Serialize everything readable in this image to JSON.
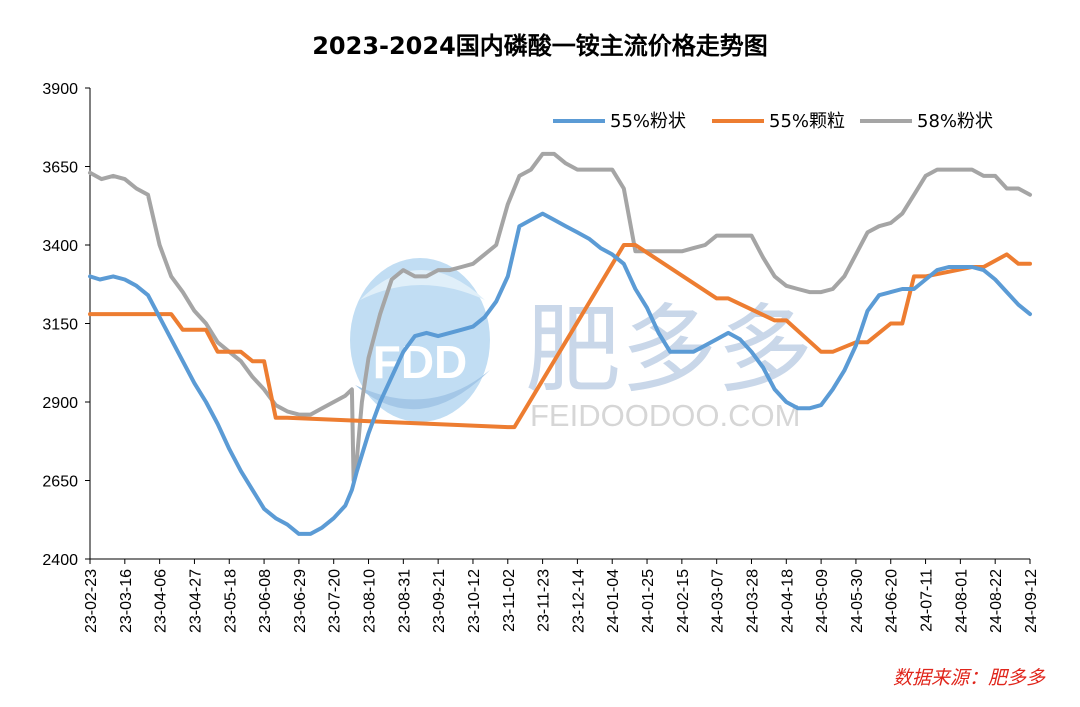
{
  "chart_data": {
    "type": "line",
    "title": "2023-2024国内磷酸一铵主流价格走势图",
    "xlabel": "",
    "ylabel": "",
    "ylim": [
      2400,
      3900
    ],
    "yticks": [
      2400,
      2650,
      2900,
      3150,
      3400,
      3650,
      3900
    ],
    "xlim": [
      "2023-02-23",
      "2024-09-12"
    ],
    "xticks": [
      "23-02-23",
      "23-03-16",
      "23-04-06",
      "23-04-27",
      "23-05-18",
      "23-06-08",
      "23-06-29",
      "23-07-20",
      "23-08-10",
      "23-08-31",
      "23-09-21",
      "23-10-12",
      "23-11-02",
      "23-11-23",
      "23-12-14",
      "24-01-04",
      "24-01-25",
      "24-02-15",
      "24-03-07",
      "24-03-28",
      "24-04-18",
      "24-05-09",
      "24-05-30",
      "24-06-20",
      "24-07-11",
      "24-08-01",
      "24-08-22",
      "24-09-12"
    ],
    "legend_position": "top-right",
    "grid": false,
    "series": [
      {
        "name": "55%粉状",
        "color": "#5b9bd5",
        "x": [
          "2023-02-23",
          "2023-03-01",
          "2023-03-09",
          "2023-03-16",
          "2023-03-23",
          "2023-03-30",
          "2023-04-06",
          "2023-04-13",
          "2023-04-20",
          "2023-04-27",
          "2023-05-04",
          "2023-05-11",
          "2023-05-18",
          "2023-05-25",
          "2023-06-01",
          "2023-06-08",
          "2023-06-15",
          "2023-06-22",
          "2023-06-29",
          "2023-07-06",
          "2023-07-13",
          "2023-07-20",
          "2023-07-27",
          "2023-07-31",
          "2023-08-03",
          "2023-08-10",
          "2023-08-17",
          "2023-08-24",
          "2023-08-31",
          "2023-09-07",
          "2023-09-14",
          "2023-09-21",
          "2023-09-28",
          "2023-10-05",
          "2023-10-12",
          "2023-10-19",
          "2023-10-26",
          "2023-11-02",
          "2023-11-09",
          "2023-11-16",
          "2023-11-23",
          "2023-11-30",
          "2023-12-07",
          "2023-12-14",
          "2023-12-21",
          "2023-12-28",
          "2024-01-04",
          "2024-01-11",
          "2024-01-18",
          "2024-01-25",
          "2024-02-01",
          "2024-02-08",
          "2024-02-15",
          "2024-02-22",
          "2024-02-29",
          "2024-03-07",
          "2024-03-14",
          "2024-03-21",
          "2024-03-28",
          "2024-04-04",
          "2024-04-11",
          "2024-04-18",
          "2024-04-25",
          "2024-05-02",
          "2024-05-09",
          "2024-05-16",
          "2024-05-23",
          "2024-05-30",
          "2024-06-06",
          "2024-06-13",
          "2024-06-20",
          "2024-06-27",
          "2024-07-04",
          "2024-07-11",
          "2024-07-18",
          "2024-07-25",
          "2024-08-01",
          "2024-08-08",
          "2024-08-15",
          "2024-08-22",
          "2024-08-29",
          "2024-09-05",
          "2024-09-12"
        ],
        "y": [
          3300,
          3290,
          3300,
          3290,
          3270,
          3240,
          3170,
          3100,
          3030,
          2960,
          2900,
          2830,
          2750,
          2680,
          2620,
          2560,
          2530,
          2510,
          2480,
          2480,
          2500,
          2530,
          2570,
          2620,
          2680,
          2800,
          2900,
          2980,
          3060,
          3110,
          3120,
          3110,
          3120,
          3130,
          3140,
          3170,
          3220,
          3300,
          3460,
          3480,
          3500,
          3480,
          3460,
          3440,
          3420,
          3390,
          3370,
          3340,
          3260,
          3200,
          3120,
          3060,
          3060,
          3060,
          3080,
          3100,
          3120,
          3100,
          3060,
          3010,
          2940,
          2900,
          2880,
          2880,
          2890,
          2940,
          3000,
          3080,
          3190,
          3240,
          3250,
          3260,
          3260,
          3290,
          3320,
          3330,
          3330,
          3330,
          3320,
          3290,
          3250,
          3210,
          3180
        ]
      },
      {
        "name": "55%颗粒",
        "color": "#ed7d31",
        "x": [
          "2023-02-23",
          "2023-04-13",
          "2023-04-20",
          "2023-05-04",
          "2023-05-11",
          "2023-05-25",
          "2023-06-01",
          "2023-06-08",
          "2023-06-15",
          "2023-06-22",
          "2023-11-02",
          "2023-11-06",
          "2024-01-11",
          "2024-01-18",
          "2024-03-07",
          "2024-03-14",
          "2024-04-11",
          "2024-04-18",
          "2024-05-09",
          "2024-05-16",
          "2024-05-30",
          "2024-06-06",
          "2024-06-20",
          "2024-06-27",
          "2024-07-04",
          "2024-07-11",
          "2024-08-08",
          "2024-08-15",
          "2024-08-29",
          "2024-09-05",
          "2024-09-12"
        ],
        "y": [
          3180,
          3180,
          3130,
          3130,
          3060,
          3060,
          3030,
          3030,
          2850,
          2850,
          2820,
          2820,
          3400,
          3400,
          3230,
          3230,
          3160,
          3160,
          3060,
          3060,
          3090,
          3090,
          3150,
          3150,
          3300,
          3300,
          3330,
          3330,
          3370,
          3340,
          3340
        ]
      },
      {
        "name": "58%粉状",
        "color": "#a5a5a5",
        "x": [
          "2023-02-23",
          "2023-03-02",
          "2023-03-09",
          "2023-03-16",
          "2023-03-23",
          "2023-03-30",
          "2023-04-06",
          "2023-04-13",
          "2023-04-20",
          "2023-04-27",
          "2023-05-04",
          "2023-05-11",
          "2023-05-18",
          "2023-05-25",
          "2023-06-01",
          "2023-06-08",
          "2023-06-15",
          "2023-06-22",
          "2023-06-29",
          "2023-07-06",
          "2023-07-13",
          "2023-07-20",
          "2023-07-27",
          "2023-07-31",
          "2023-08-01",
          "2023-08-03",
          "2023-08-06",
          "2023-08-10",
          "2023-08-17",
          "2023-08-24",
          "2023-08-31",
          "2023-09-07",
          "2023-09-14",
          "2023-09-21",
          "2023-09-28",
          "2023-10-05",
          "2023-10-12",
          "2023-10-19",
          "2023-10-26",
          "2023-11-02",
          "2023-11-09",
          "2023-11-16",
          "2023-11-23",
          "2023-11-30",
          "2023-12-07",
          "2023-12-14",
          "2023-12-21",
          "2023-12-28",
          "2024-01-04",
          "2024-01-11",
          "2024-01-18",
          "2024-01-25",
          "2024-02-01",
          "2024-02-08",
          "2024-02-15",
          "2024-02-22",
          "2024-02-29",
          "2024-03-07",
          "2024-03-14",
          "2024-03-21",
          "2024-03-28",
          "2024-04-04",
          "2024-04-11",
          "2024-04-18",
          "2024-04-25",
          "2024-05-02",
          "2024-05-09",
          "2024-05-16",
          "2024-05-23",
          "2024-05-30",
          "2024-06-06",
          "2024-06-13",
          "2024-06-20",
          "2024-06-27",
          "2024-07-04",
          "2024-07-11",
          "2024-07-18",
          "2024-07-25",
          "2024-08-01",
          "2024-08-08",
          "2024-08-15",
          "2024-08-22",
          "2024-08-29",
          "2024-09-05",
          "2024-09-12"
        ],
        "y": [
          3630,
          3610,
          3620,
          3610,
          3580,
          3560,
          3400,
          3300,
          3250,
          3190,
          3150,
          3090,
          3060,
          3030,
          2980,
          2940,
          2890,
          2870,
          2860,
          2860,
          2880,
          2900,
          2920,
          2940,
          2650,
          2720,
          2900,
          3040,
          3180,
          3290,
          3320,
          3300,
          3300,
          3320,
          3320,
          3330,
          3340,
          3370,
          3400,
          3530,
          3620,
          3640,
          3690,
          3690,
          3660,
          3640,
          3640,
          3640,
          3640,
          3580,
          3380,
          3380,
          3380,
          3380,
          3380,
          3390,
          3400,
          3430,
          3430,
          3430,
          3430,
          3360,
          3300,
          3270,
          3260,
          3250,
          3250,
          3260,
          3300,
          3370,
          3440,
          3460,
          3470,
          3500,
          3560,
          3620,
          3640,
          3640,
          3640,
          3640,
          3620,
          3620,
          3580,
          3580,
          3560
        ]
      }
    ]
  },
  "watermark": {
    "logo_text": "FDD",
    "brand": "肥多多",
    "url": "FEIDOODOO.COM"
  },
  "source": "数据来源：肥多多"
}
